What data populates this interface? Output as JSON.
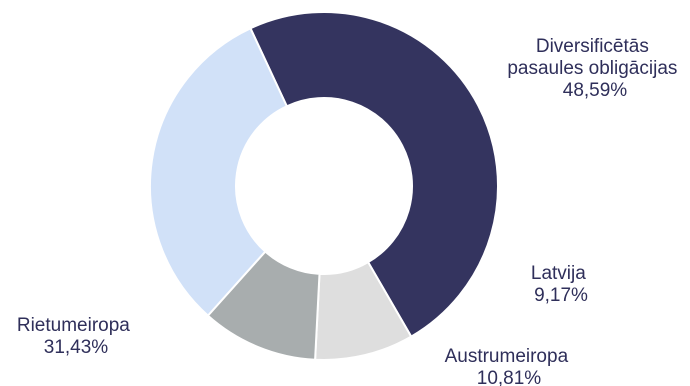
{
  "chart_data": {
    "type": "pie",
    "donut": true,
    "start_angle_deg": -115,
    "direction": "clockwise",
    "slices": [
      {
        "label_lines": [
          "Diversificētās",
          "pasaules obligācijas"
        ],
        "value_label": "48,59%",
        "value": 48.59,
        "color": "#34345f"
      },
      {
        "label_lines": [
          "Latvija"
        ],
        "value_label": "9,17%",
        "value": 9.17,
        "color": "#dedede"
      },
      {
        "label_lines": [
          "Austrumeiropa"
        ],
        "value_label": "10,81%",
        "value": 10.81,
        "color": "#a8adae"
      },
      {
        "label_lines": [
          "Rietumeiropa"
        ],
        "value_label": "31,43%",
        "value": 31.43,
        "color": "#d1e1f8"
      }
    ]
  }
}
